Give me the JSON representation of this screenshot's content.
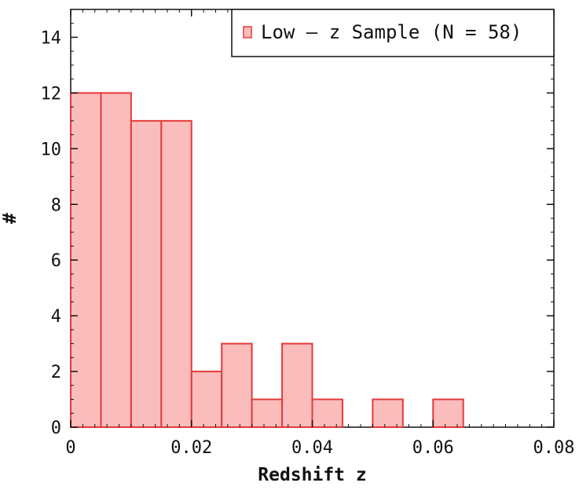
{
  "chart_data": {
    "type": "bar",
    "bins": [
      {
        "x0": 0.0,
        "x1": 0.005,
        "count": 12
      },
      {
        "x0": 0.005,
        "x1": 0.01,
        "count": 12
      },
      {
        "x0": 0.01,
        "x1": 0.015,
        "count": 11
      },
      {
        "x0": 0.015,
        "x1": 0.02,
        "count": 11
      },
      {
        "x0": 0.02,
        "x1": 0.025,
        "count": 2
      },
      {
        "x0": 0.025,
        "x1": 0.03,
        "count": 3
      },
      {
        "x0": 0.03,
        "x1": 0.035,
        "count": 1
      },
      {
        "x0": 0.035,
        "x1": 0.04,
        "count": 3
      },
      {
        "x0": 0.04,
        "x1": 0.045,
        "count": 1
      },
      {
        "x0": 0.045,
        "x1": 0.05,
        "count": 0
      },
      {
        "x0": 0.05,
        "x1": 0.055,
        "count": 1
      },
      {
        "x0": 0.055,
        "x1": 0.06,
        "count": 0
      },
      {
        "x0": 0.06,
        "x1": 0.065,
        "count": 1
      }
    ],
    "xlim": [
      0,
      0.08
    ],
    "ylim": [
      0,
      15
    ],
    "xticks": [
      "0",
      "0.02",
      "0.04",
      "0.06",
      "0.08"
    ],
    "xtick_values": [
      0,
      0.02,
      0.04,
      0.06,
      0.08
    ],
    "yticks": [
      "0",
      "2",
      "4",
      "6",
      "8",
      "10",
      "12",
      "14"
    ],
    "ytick_values": [
      0,
      2,
      4,
      6,
      8,
      10,
      12,
      14
    ],
    "xlabel": "Redshift z",
    "ylabel": "#",
    "legend": {
      "label": "Low — z Sample (N = 58)",
      "placement": "top-right"
    },
    "colors": {
      "fill": "#fbbcbc",
      "stroke": "#e53b3b",
      "axis": "#111111"
    },
    "grid": false
  }
}
